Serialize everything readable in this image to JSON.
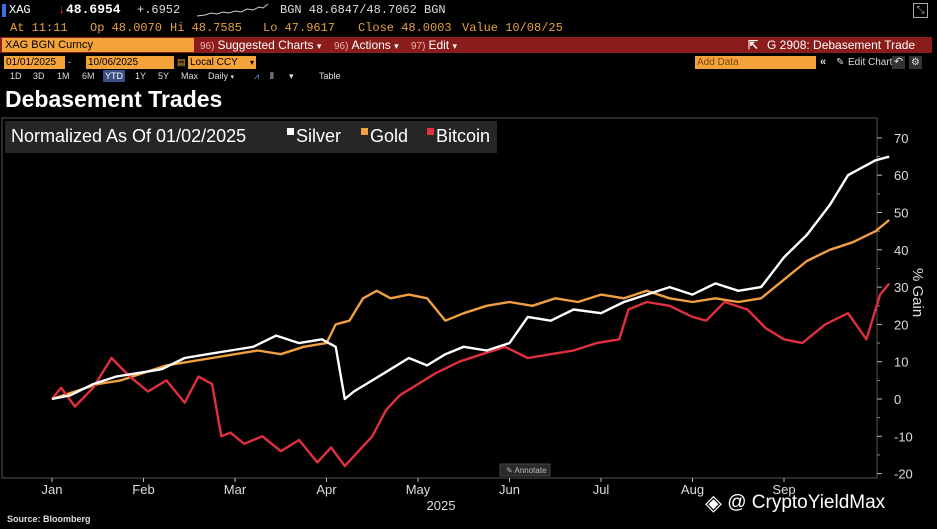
{
  "ticker": {
    "symbol": "XAG",
    "price_arrow": "↓",
    "price": "48.6954",
    "change": "+.6952",
    "bid_ask": "BGN 48.6847/48.7062 BGN",
    "at": "At 11:11",
    "open": "Op 48.0070",
    "high": "Hi 48.7585",
    "low": "Lo 47.9617",
    "close": "Close 48.0003",
    "value": "Value 10/08/25"
  },
  "toolbar": {
    "security": "XAG BGN Curncy",
    "menus": [
      {
        "num": "96)",
        "label": "Suggested Charts",
        "caret": "▾"
      },
      {
        "num": "96)",
        "label": "Actions",
        "caret": "▾"
      },
      {
        "num": "97)",
        "label": "Edit",
        "caret": "▾"
      }
    ],
    "right_icon": "⇱",
    "right_label": "G 2908: Debasement Trade"
  },
  "dates": {
    "start": "01/01/2025",
    "end": "10/06/2025",
    "currency": "Local CCY",
    "add_data_placeholder": "Add Data",
    "edit_chart": "Edit Chart",
    "collapse_icon": "«",
    "undo_icon": "↶",
    "pencil_icon": "✎",
    "gear_icon": "⚙",
    "close_icon": "⤡"
  },
  "periods": [
    "1D",
    "3D",
    "1M",
    "6M",
    "YTD",
    "1Y",
    "5Y",
    "Max"
  ],
  "active_period": "YTD",
  "frequency": "Daily",
  "table_label": "Table",
  "chart_data": {
    "type": "line",
    "title": "Debasement Trades",
    "subtitle": "Normalized As Of 01/02/2025",
    "ylabel": "% Gain",
    "ylim": [
      -21,
      74
    ],
    "yticks": [
      -20,
      -10,
      0,
      10,
      20,
      30,
      40,
      50,
      60,
      70
    ],
    "xticks": [
      "Jan",
      "Feb",
      "Mar",
      "Apr",
      "May",
      "Jun",
      "Jul",
      "Aug",
      "Sep"
    ],
    "xlabel": "2025",
    "annotate_label": "Annotate",
    "colors": {
      "Silver": "#ffffff",
      "Gold": "#f0a040",
      "Bitcoin": "#e0303f"
    },
    "series": [
      {
        "name": "Silver",
        "points": [
          [
            0.0,
            0
          ],
          [
            0.2,
            1
          ],
          [
            0.45,
            4
          ],
          [
            0.7,
            6
          ],
          [
            0.95,
            7
          ],
          [
            1.2,
            8
          ],
          [
            1.45,
            11
          ],
          [
            1.7,
            12
          ],
          [
            1.95,
            13
          ],
          [
            2.2,
            14
          ],
          [
            2.45,
            17
          ],
          [
            2.7,
            15
          ],
          [
            2.95,
            16
          ],
          [
            3.1,
            14
          ],
          [
            3.2,
            0
          ],
          [
            3.3,
            2
          ],
          [
            3.5,
            5
          ],
          [
            3.7,
            8
          ],
          [
            3.9,
            11
          ],
          [
            4.1,
            9
          ],
          [
            4.3,
            12
          ],
          [
            4.5,
            14
          ],
          [
            4.75,
            13
          ],
          [
            5.0,
            15
          ],
          [
            5.2,
            22
          ],
          [
            5.45,
            21
          ],
          [
            5.7,
            24
          ],
          [
            6.0,
            23
          ],
          [
            6.25,
            26
          ],
          [
            6.5,
            28
          ],
          [
            6.75,
            30
          ],
          [
            7.0,
            28
          ],
          [
            7.25,
            31
          ],
          [
            7.5,
            29
          ],
          [
            7.75,
            30
          ],
          [
            8.0,
            38
          ],
          [
            8.25,
            44
          ],
          [
            8.5,
            52
          ],
          [
            8.7,
            60
          ],
          [
            8.85,
            62
          ],
          [
            9.0,
            64
          ],
          [
            9.15,
            65
          ]
        ]
      },
      {
        "name": "Gold",
        "points": [
          [
            0.0,
            0
          ],
          [
            0.25,
            2
          ],
          [
            0.5,
            4
          ],
          [
            0.75,
            5
          ],
          [
            1.0,
            7
          ],
          [
            1.25,
            9
          ],
          [
            1.5,
            10
          ],
          [
            1.75,
            11
          ],
          [
            2.0,
            12
          ],
          [
            2.25,
            13
          ],
          [
            2.5,
            12
          ],
          [
            2.75,
            14
          ],
          [
            3.0,
            15
          ],
          [
            3.1,
            20
          ],
          [
            3.25,
            21
          ],
          [
            3.4,
            27
          ],
          [
            3.55,
            29
          ],
          [
            3.7,
            27
          ],
          [
            3.9,
            28
          ],
          [
            4.1,
            27
          ],
          [
            4.3,
            21
          ],
          [
            4.5,
            23
          ],
          [
            4.75,
            25
          ],
          [
            5.0,
            26
          ],
          [
            5.25,
            25
          ],
          [
            5.5,
            27
          ],
          [
            5.75,
            26
          ],
          [
            6.0,
            28
          ],
          [
            6.25,
            27
          ],
          [
            6.5,
            29
          ],
          [
            6.75,
            27
          ],
          [
            7.0,
            26
          ],
          [
            7.25,
            27
          ],
          [
            7.5,
            26
          ],
          [
            7.75,
            27
          ],
          [
            8.0,
            32
          ],
          [
            8.25,
            37
          ],
          [
            8.5,
            40
          ],
          [
            8.75,
            42
          ],
          [
            9.0,
            45
          ],
          [
            9.15,
            48
          ]
        ]
      },
      {
        "name": "Bitcoin",
        "points": [
          [
            0.0,
            0
          ],
          [
            0.1,
            3
          ],
          [
            0.25,
            -2
          ],
          [
            0.45,
            3
          ],
          [
            0.65,
            11
          ],
          [
            0.85,
            6
          ],
          [
            1.05,
            2
          ],
          [
            1.25,
            5
          ],
          [
            1.45,
            -1
          ],
          [
            1.6,
            6
          ],
          [
            1.75,
            4
          ],
          [
            1.85,
            -10
          ],
          [
            1.95,
            -9
          ],
          [
            2.1,
            -12
          ],
          [
            2.3,
            -10
          ],
          [
            2.5,
            -14
          ],
          [
            2.7,
            -11
          ],
          [
            2.9,
            -17
          ],
          [
            3.05,
            -13
          ],
          [
            3.2,
            -18
          ],
          [
            3.35,
            -14
          ],
          [
            3.5,
            -10
          ],
          [
            3.65,
            -3
          ],
          [
            3.8,
            1
          ],
          [
            4.0,
            4
          ],
          [
            4.2,
            7
          ],
          [
            4.45,
            10
          ],
          [
            4.7,
            12
          ],
          [
            4.95,
            14
          ],
          [
            5.2,
            11
          ],
          [
            5.45,
            12
          ],
          [
            5.7,
            13
          ],
          [
            5.95,
            15
          ],
          [
            6.2,
            16
          ],
          [
            6.3,
            24
          ],
          [
            6.5,
            26
          ],
          [
            6.75,
            25
          ],
          [
            7.0,
            22
          ],
          [
            7.15,
            21
          ],
          [
            7.35,
            26
          ],
          [
            7.6,
            24
          ],
          [
            7.8,
            19
          ],
          [
            8.0,
            16
          ],
          [
            8.2,
            15
          ],
          [
            8.45,
            20
          ],
          [
            8.7,
            23
          ],
          [
            8.9,
            16
          ],
          [
            9.05,
            28
          ],
          [
            9.15,
            31
          ]
        ]
      }
    ]
  },
  "source": "Source: Bloomberg",
  "watermark": "@ CryptoYieldMax",
  "watermark_icon": "◈"
}
